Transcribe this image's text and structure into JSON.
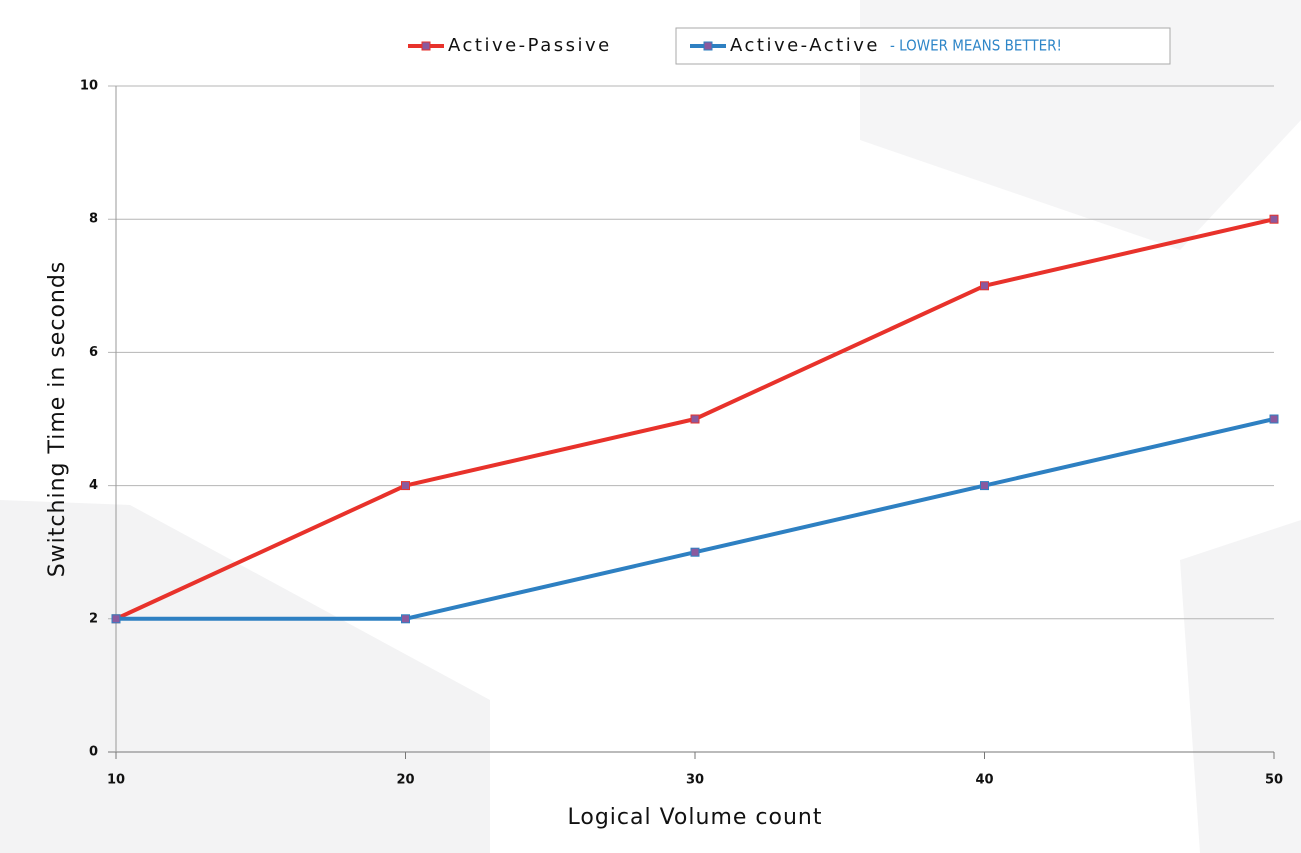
{
  "chart_data": {
    "type": "line",
    "x": [
      10,
      20,
      30,
      40,
      50
    ],
    "series": [
      {
        "name": "Active-Passive",
        "color": "#e8322b",
        "values": [
          2,
          4,
          5,
          7,
          8
        ]
      },
      {
        "name": "Active-Active",
        "color": "#2e80c2",
        "values": [
          2,
          2,
          3,
          4,
          5
        ]
      }
    ],
    "marker_color": "#8a5a9e",
    "xlim": [
      10,
      50
    ],
    "xticks": [
      10,
      20,
      30,
      40,
      50
    ],
    "ylim": [
      0,
      10
    ],
    "yticks": [
      0,
      2,
      4,
      6,
      8,
      10
    ],
    "grid": true,
    "legend": "top",
    "annotation": "- LOWER MEANS BETTER!",
    "xlabel": "Logical Volume count",
    "ylabel": "Switching Time  in seconds"
  }
}
